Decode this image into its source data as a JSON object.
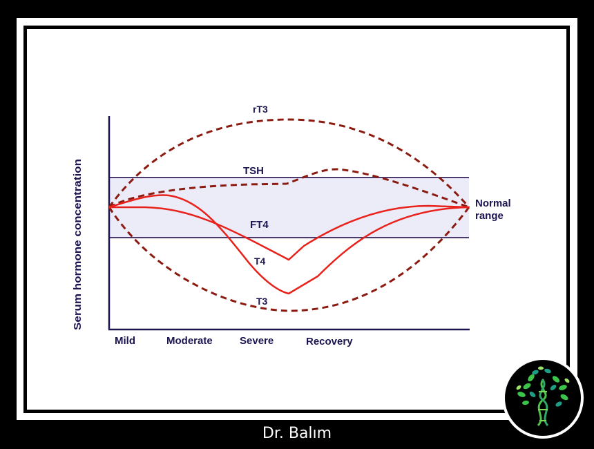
{
  "diagram": {
    "y_axis_label": "Serum hormone concentration",
    "stages": [
      "Mild",
      "Moderate",
      "Severe",
      "Recovery"
    ],
    "curves": {
      "rt3": "rT3",
      "tsh": "TSH",
      "ft4": "FT4",
      "t4": "T4",
      "t3": "T3"
    },
    "normal_range_label": [
      "Normal",
      "range"
    ],
    "colors": {
      "dashed_curve": "#8b1a10",
      "solid_curve": "#e8221b",
      "band_fill": "#ececf8",
      "band_line": "#4a3a6e",
      "axis": "#1a1450",
      "text": "#1a1450"
    }
  },
  "footer": {
    "credit": "Dr. Balım"
  },
  "logo": {
    "icon": "tree-dna-icon"
  }
}
